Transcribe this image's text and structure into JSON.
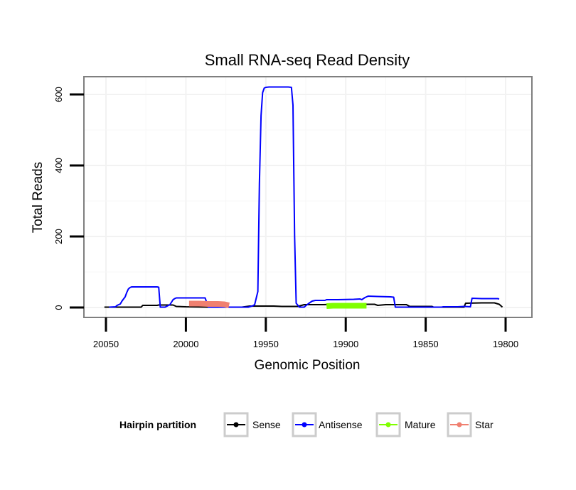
{
  "chart_data": {
    "type": "line",
    "title": "Small RNA-seq Read Density",
    "xlabel": "Genomic Position",
    "ylabel": "Total Reads",
    "xlim": [
      20050,
      19800
    ],
    "ylim": [
      0,
      620
    ],
    "x_reversed": true,
    "x_ticks": [
      20050,
      20000,
      19950,
      19900,
      19850,
      19800
    ],
    "x_tick_labels": [
      "20050",
      "20000",
      "19950",
      "19900",
      "19850",
      "19800"
    ],
    "y_ticks": [
      0,
      200,
      400,
      600
    ],
    "y_tick_labels": [
      "0",
      "200",
      "400",
      "600"
    ],
    "grid": true,
    "legend": {
      "title": "Hairpin partition",
      "placement": "bottom",
      "entries": [
        "Sense",
        "Antisense",
        "Mature",
        "Star"
      ]
    },
    "series": [
      {
        "name": "Sense",
        "color": "#000000",
        "line_style": "thin",
        "points": [
          [
            20051,
            1
          ],
          [
            20028,
            1
          ],
          [
            20027,
            6
          ],
          [
            20018,
            6
          ],
          [
            20017,
            7
          ],
          [
            20008,
            7
          ],
          [
            20006,
            3
          ],
          [
            20000,
            2
          ],
          [
            19985,
            1
          ],
          [
            19965,
            1
          ],
          [
            19960,
            4
          ],
          [
            19945,
            4
          ],
          [
            19940,
            3
          ],
          [
            19930,
            3
          ],
          [
            19926,
            8
          ],
          [
            19914,
            8
          ],
          [
            19908,
            9
          ],
          [
            19882,
            9
          ],
          [
            19880,
            6
          ],
          [
            19875,
            8
          ],
          [
            19862,
            8
          ],
          [
            19860,
            3
          ],
          [
            19846,
            3
          ],
          [
            19845,
            1
          ],
          [
            19826,
            1
          ],
          [
            19825,
            12
          ],
          [
            19815,
            13
          ],
          [
            19807,
            13
          ],
          [
            19804,
            9
          ],
          [
            19802,
            1
          ]
        ]
      },
      {
        "name": "Antisense",
        "color": "#0000ff",
        "line_style": "thin",
        "points": [
          [
            20048,
            1
          ],
          [
            20044,
            2
          ],
          [
            20043,
            6
          ],
          [
            20041,
            10
          ],
          [
            20040,
            18
          ],
          [
            20038,
            30
          ],
          [
            20037,
            42
          ],
          [
            20036,
            52
          ],
          [
            20035,
            56
          ],
          [
            20034,
            58
          ],
          [
            20018,
            58
          ],
          [
            20017,
            57
          ],
          [
            20016,
            1
          ],
          [
            20013,
            1
          ],
          [
            20010,
            8
          ],
          [
            20009,
            15
          ],
          [
            20008,
            22
          ],
          [
            20007,
            25
          ],
          [
            20006,
            27
          ],
          [
            19988,
            27
          ],
          [
            19987,
            15
          ],
          [
            19986,
            1
          ],
          [
            19961,
            1
          ],
          [
            19958,
            5
          ],
          [
            19957,
            8
          ],
          [
            19955,
            45
          ],
          [
            19954,
            350
          ],
          [
            19953,
            540
          ],
          [
            19952,
            605
          ],
          [
            19951,
            618
          ],
          [
            19950,
            620
          ],
          [
            19948,
            621
          ],
          [
            19936,
            621
          ],
          [
            19934,
            620
          ],
          [
            19933,
            570
          ],
          [
            19932,
            200
          ],
          [
            19931,
            12
          ],
          [
            19929,
            1
          ],
          [
            19926,
            1
          ],
          [
            19925,
            5
          ],
          [
            19923,
            12
          ],
          [
            19921,
            18
          ],
          [
            19919,
            20
          ],
          [
            19913,
            20
          ],
          [
            19912,
            22
          ],
          [
            19905,
            22
          ],
          [
            19895,
            23
          ],
          [
            19891,
            24
          ],
          [
            19890,
            22
          ],
          [
            19888,
            28
          ],
          [
            19886,
            32
          ],
          [
            19880,
            31
          ],
          [
            19872,
            30
          ],
          [
            19870,
            29
          ],
          [
            19869,
            1
          ],
          [
            19840,
            1
          ],
          [
            19839,
            2
          ],
          [
            19830,
            2
          ],
          [
            19826,
            3
          ],
          [
            19822,
            2
          ],
          [
            19821,
            26
          ],
          [
            19815,
            25
          ],
          [
            19805,
            25
          ],
          [
            19804,
            24
          ]
        ]
      },
      {
        "name": "Mature",
        "color": "#80ff00",
        "line_style": "thick",
        "points": [
          [
            19912,
            4
          ],
          [
            19908,
            5
          ],
          [
            19900,
            5
          ],
          [
            19890,
            5
          ],
          [
            19887,
            5
          ]
        ]
      },
      {
        "name": "Star",
        "color": "#f08070",
        "line_style": "thick",
        "points": [
          [
            19998,
            11
          ],
          [
            19992,
            11
          ],
          [
            19986,
            10
          ],
          [
            19980,
            10
          ],
          [
            19976,
            9
          ],
          [
            19973,
            6
          ]
        ]
      }
    ]
  }
}
